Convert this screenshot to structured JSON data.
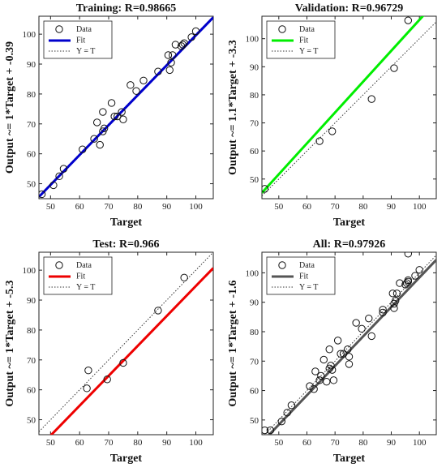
{
  "chart_data": [
    {
      "type": "scatter",
      "title": "Training: R=0.98665",
      "xlabel": "Target",
      "ylabel": "Output ~= 1*Target + -0.39",
      "xlim": [
        46,
        106
      ],
      "ylim": [
        45,
        106
      ],
      "xticks": [
        50,
        60,
        70,
        80,
        90,
        100
      ],
      "yticks": [
        50,
        60,
        70,
        80,
        90,
        100
      ],
      "fit_color": "#0000cc",
      "fit": {
        "slope": 1.0,
        "intercept": -0.39
      },
      "legend": [
        "Data",
        "Fit",
        "Y = T"
      ],
      "legend_position": "top-left",
      "points": [
        [
          47,
          46.5
        ],
        [
          51,
          49.5
        ],
        [
          53,
          52.5
        ],
        [
          54.5,
          55
        ],
        [
          61,
          61.5
        ],
        [
          65,
          65
        ],
        [
          66,
          70.5
        ],
        [
          67,
          63
        ],
        [
          68,
          67.5
        ],
        [
          68,
          74
        ],
        [
          68.5,
          68.5
        ],
        [
          71,
          77
        ],
        [
          72,
          72.5
        ],
        [
          73,
          72.5
        ],
        [
          74.5,
          74
        ],
        [
          75,
          71.5
        ],
        [
          77.5,
          83
        ],
        [
          79.5,
          81
        ],
        [
          82,
          84.5
        ],
        [
          87,
          87.5
        ],
        [
          90.5,
          93
        ],
        [
          91,
          88
        ],
        [
          91.5,
          90.5
        ],
        [
          92,
          93
        ],
        [
          93,
          96.5
        ],
        [
          95,
          96
        ],
        [
          95.5,
          96.5
        ],
        [
          96,
          97
        ],
        [
          98.5,
          99
        ],
        [
          100,
          101
        ]
      ]
    },
    {
      "type": "scatter",
      "title": "Validation: R=0.96729",
      "xlabel": "Target",
      "ylabel": "Output ~= 1.1*Target + -3.3",
      "xlim": [
        44,
        106
      ],
      "ylim": [
        43,
        108
      ],
      "xticks": [
        50,
        60,
        70,
        80,
        90,
        100
      ],
      "yticks": [
        50,
        60,
        70,
        80,
        90,
        100
      ],
      "fit_color": "#00ee00",
      "fit": {
        "slope": 1.1,
        "intercept": -3.3
      },
      "legend": [
        "Data",
        "Fit",
        "Y = T"
      ],
      "legend_position": "top-left",
      "points": [
        [
          45,
          46.5
        ],
        [
          64.5,
          63.5
        ],
        [
          69,
          67
        ],
        [
          83,
          78.5
        ],
        [
          91,
          89.5
        ],
        [
          96,
          106.5
        ]
      ]
    },
    {
      "type": "scatter",
      "title": "Test: R=0.966",
      "xlabel": "Target",
      "ylabel": "Output ~= 1*Target + -5.3",
      "xlim": [
        46,
        106
      ],
      "ylim": [
        45,
        106
      ],
      "xticks": [
        50,
        60,
        70,
        80,
        90,
        100
      ],
      "yticks": [
        50,
        60,
        70,
        80,
        90,
        100
      ],
      "fit_color": "#ee0000",
      "fit": {
        "slope": 1.0,
        "intercept": -5.3
      },
      "legend": [
        "Data",
        "Fit",
        "Y = T"
      ],
      "legend_position": "top-left",
      "points": [
        [
          62.5,
          60.5
        ],
        [
          63,
          66.5
        ],
        [
          69.5,
          63.5
        ],
        [
          75,
          69
        ],
        [
          87,
          86.5
        ],
        [
          96,
          97.5
        ]
      ]
    },
    {
      "type": "scatter",
      "title": "All: R=0.97926",
      "xlabel": "Target",
      "ylabel": "Output ~= 1*Target + -1.6",
      "xlim": [
        44,
        106
      ],
      "ylim": [
        45,
        107
      ],
      "xticks": [
        50,
        60,
        70,
        80,
        90,
        100
      ],
      "yticks": [
        50,
        60,
        70,
        80,
        90,
        100
      ],
      "fit_color": "#555555",
      "fit": {
        "slope": 1.0,
        "intercept": -1.6
      },
      "legend": [
        "Data",
        "Fit",
        "Y = T"
      ],
      "legend_position": "top-left",
      "points": [
        [
          45,
          46.5
        ],
        [
          47,
          46.5
        ],
        [
          51,
          49.5
        ],
        [
          53,
          52.5
        ],
        [
          54.5,
          55
        ],
        [
          61,
          61.5
        ],
        [
          62.5,
          60.5
        ],
        [
          63,
          66.5
        ],
        [
          64.5,
          63.5
        ],
        [
          65,
          65
        ],
        [
          66,
          70.5
        ],
        [
          67,
          63
        ],
        [
          68,
          67.5
        ],
        [
          68,
          74
        ],
        [
          68.5,
          68.5
        ],
        [
          69,
          67
        ],
        [
          69.5,
          63.5
        ],
        [
          71,
          77
        ],
        [
          72,
          72.5
        ],
        [
          73,
          72.5
        ],
        [
          74.5,
          74
        ],
        [
          75,
          71.5
        ],
        [
          75,
          69
        ],
        [
          77.5,
          83
        ],
        [
          79.5,
          81
        ],
        [
          82,
          84.5
        ],
        [
          83,
          78.5
        ],
        [
          87,
          86.5
        ],
        [
          87,
          87.5
        ],
        [
          90.5,
          93
        ],
        [
          91,
          88
        ],
        [
          91,
          89.5
        ],
        [
          91.5,
          90.5
        ],
        [
          92,
          93
        ],
        [
          93,
          96.5
        ],
        [
          95,
          96
        ],
        [
          95.5,
          96.5
        ],
        [
          96,
          97
        ],
        [
          96,
          97.5
        ],
        [
          96,
          106.5
        ],
        [
          98.5,
          99
        ],
        [
          100,
          101
        ]
      ]
    }
  ]
}
